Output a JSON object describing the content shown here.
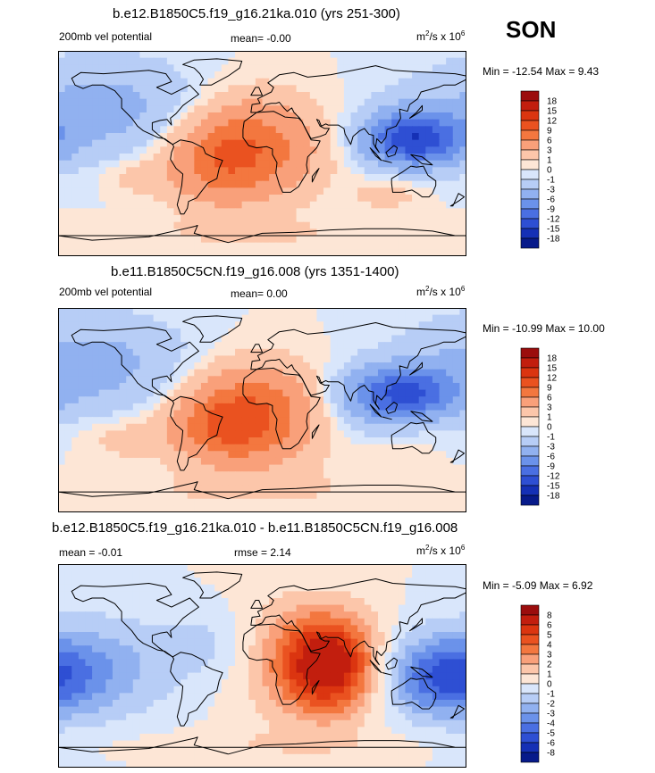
{
  "season": "SON",
  "chart_data": [
    {
      "type": "heatmap",
      "id": "p1",
      "title": "b.e12.B1850C5.f19_g16.21ka.010 (yrs 251-300)",
      "left_label": "200mb vel potential",
      "center_label": "mean=  -0.00",
      "units_text": "m",
      "units_sup1": "2",
      "units_mid": "/s x 10",
      "units_sup2": "6",
      "stats": "Min = -12.54 Max =   9.43",
      "levels": [
        "18",
        "15",
        "12",
        "9",
        "6",
        "3",
        "1",
        "0",
        "-1",
        "-3",
        "-6",
        "-9",
        "-12",
        "-15",
        "-18"
      ],
      "colors": [
        "#9b0d0d",
        "#c21e0e",
        "#db3510",
        "#ea5220",
        "#f3773f",
        "#f9a07a",
        "#fcc6aa",
        "#fde6d6",
        "#d9e6fb",
        "#b7cdf6",
        "#91b1f0",
        "#6b92ea",
        "#4a6fe2",
        "#2e4fd3",
        "#1530b5",
        "#071a8a"
      ],
      "blobs": [
        {
          "lon": -10,
          "lat": 5,
          "sx": 40,
          "sy": 30,
          "v": 8
        },
        {
          "lon": -45,
          "lat": -10,
          "sx": 30,
          "sy": 25,
          "v": 4
        },
        {
          "lon": 140,
          "lat": 12,
          "sx": 30,
          "sy": 15,
          "v": -11
        },
        {
          "lon": 120,
          "lat": 15,
          "sx": 25,
          "sy": 20,
          "v": -4
        },
        {
          "lon": -140,
          "lat": 40,
          "sx": 60,
          "sy": 30,
          "v": -4
        },
        {
          "lon": 110,
          "lat": -35,
          "sx": 20,
          "sy": 10,
          "v": 2
        },
        {
          "lon": -110,
          "lat": -20,
          "sx": 20,
          "sy": 10,
          "v": 2
        },
        {
          "lon": 0,
          "lat": -70,
          "sx": 100,
          "sy": 10,
          "v": 1
        }
      ]
    },
    {
      "type": "heatmap",
      "id": "p2",
      "title": "b.e11.B1850C5CN.f19_g16.008 (yrs 1351-1400)",
      "left_label": "200mb vel potential",
      "center_label": "mean=   0.00",
      "units_text": "m",
      "units_sup1": "2",
      "units_mid": "/s x 10",
      "units_sup2": "6",
      "stats": "Min = -10.99 Max =  10.00",
      "levels": [
        "18",
        "15",
        "12",
        "9",
        "6",
        "3",
        "1",
        "0",
        "-1",
        "-3",
        "-6",
        "-9",
        "-12",
        "-15",
        "-18"
      ],
      "colors": [
        "#9b0d0d",
        "#c21e0e",
        "#db3510",
        "#ea5220",
        "#f3773f",
        "#f9a07a",
        "#fcc6aa",
        "#fde6d6",
        "#d9e6fb",
        "#b7cdf6",
        "#91b1f0",
        "#6b92ea",
        "#4a6fe2",
        "#2e4fd3",
        "#1530b5",
        "#071a8a"
      ],
      "blobs": [
        {
          "lon": -10,
          "lat": -5,
          "sx": 40,
          "sy": 30,
          "v": 9
        },
        {
          "lon": -40,
          "lat": -15,
          "sx": 30,
          "sy": 20,
          "v": 4
        },
        {
          "lon": 130,
          "lat": 15,
          "sx": 30,
          "sy": 15,
          "v": -10
        },
        {
          "lon": 100,
          "lat": 10,
          "sx": 30,
          "sy": 20,
          "v": -4
        },
        {
          "lon": -150,
          "lat": 40,
          "sx": 60,
          "sy": 30,
          "v": -4
        },
        {
          "lon": -120,
          "lat": -25,
          "sx": 25,
          "sy": 12,
          "v": 2
        },
        {
          "lon": 120,
          "lat": -35,
          "sx": 20,
          "sy": 12,
          "v": 1
        },
        {
          "lon": 0,
          "lat": -70,
          "sx": 100,
          "sy": 10,
          "v": 1
        }
      ]
    },
    {
      "type": "heatmap",
      "id": "p3",
      "title": "b.e12.B1850C5.f19_g16.21ka.010 - b.e11.B1850C5CN.f19_g16.008",
      "left_label": "mean =  -0.01",
      "center_label": "rmse =   2.14",
      "units_text": "m",
      "units_sup1": "2",
      "units_mid": "/s x 10",
      "units_sup2": "6",
      "stats": "Min =  -5.09 Max =   6.92",
      "levels": [
        "8",
        "6",
        "5",
        "4",
        "3",
        "2",
        "1",
        "0",
        "-1",
        "-2",
        "-3",
        "-4",
        "-5",
        "-6",
        "-8"
      ],
      "colors": [
        "#9b0d0d",
        "#c21e0e",
        "#db3510",
        "#ea5220",
        "#f3773f",
        "#f9a07a",
        "#fcc6aa",
        "#fde6d6",
        "#d9e6fb",
        "#b7cdf6",
        "#91b1f0",
        "#6b92ea",
        "#4a6fe2",
        "#2e4fd3",
        "#1530b5",
        "#071a8a"
      ],
      "blobs": [
        {
          "lon": 60,
          "lat": 0,
          "sx": 30,
          "sy": 30,
          "v": 6.5
        },
        {
          "lon": 20,
          "lat": 10,
          "sx": 50,
          "sy": 40,
          "v": 2
        },
        {
          "lon": 160,
          "lat": -10,
          "sx": 40,
          "sy": 25,
          "v": -4.5
        },
        {
          "lon": -140,
          "lat": 0,
          "sx": 60,
          "sy": 35,
          "v": -2
        },
        {
          "lon": -40,
          "lat": 20,
          "sx": 30,
          "sy": 25,
          "v": -1.5
        },
        {
          "lon": 0,
          "lat": -70,
          "sx": 100,
          "sy": 10,
          "v": 0.8
        }
      ]
    }
  ]
}
